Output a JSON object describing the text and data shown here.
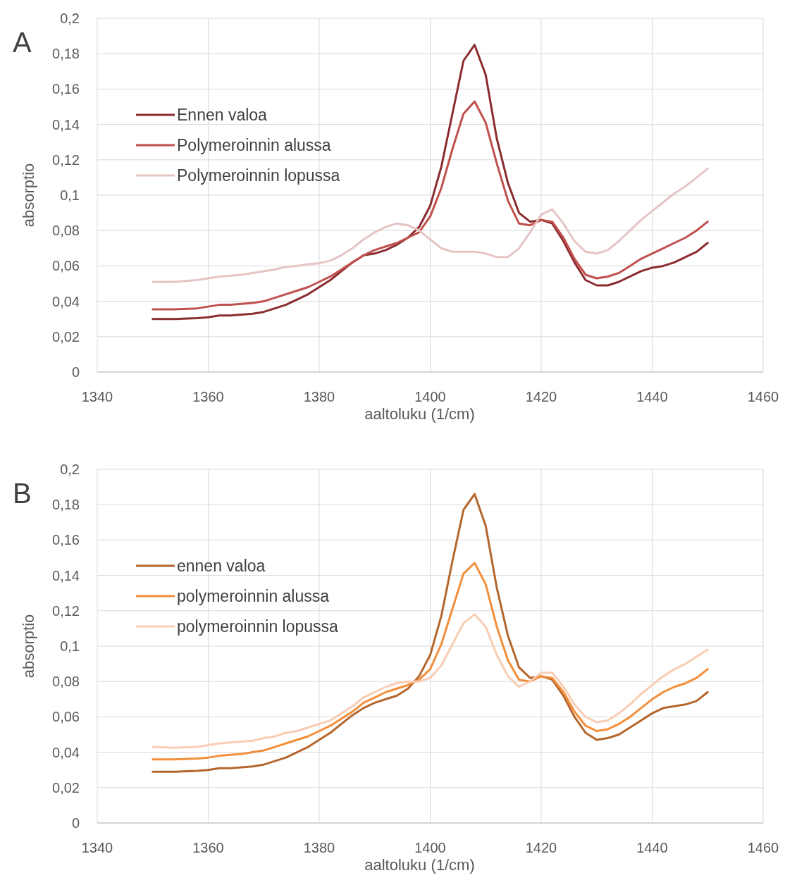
{
  "chart_data": [
    {
      "type": "line",
      "annotations": [
        "A"
      ],
      "xlabel": "aaltoluku (1/cm)",
      "ylabel": "absorptio",
      "grid": true,
      "legend": "top left",
      "xlim": [
        1340,
        1460
      ],
      "xticks": [
        1340,
        1360,
        1380,
        1400,
        1420,
        1440,
        1460
      ],
      "ylim": [
        0,
        0.2
      ],
      "yticks": [
        0,
        {
          "value": 0.02,
          "label": "0,02"
        },
        {
          "value": 0.04,
          "label": "0,04"
        },
        {
          "value": 0.06,
          "label": "0,06"
        },
        {
          "value": 0.08,
          "label": "0,08"
        },
        {
          "value": 0.1,
          "label": "0,1"
        },
        {
          "value": 0.12,
          "label": "0,12"
        },
        {
          "value": 0.14,
          "label": "0,14"
        },
        {
          "value": 0.16,
          "label": "0,16"
        },
        {
          "value": 0.18,
          "label": "0,18"
        },
        {
          "value": 0.2,
          "label": "0,2"
        }
      ],
      "x": [
        1350,
        1354,
        1358,
        1360,
        1362,
        1364,
        1366,
        1368,
        1370,
        1372,
        1374,
        1376,
        1378,
        1380,
        1382,
        1384,
        1386,
        1388,
        1390,
        1392,
        1394,
        1396,
        1398,
        1400,
        1402,
        1404,
        1406,
        1408,
        1410,
        1412,
        1414,
        1416,
        1418,
        1420,
        1422,
        1424,
        1426,
        1428,
        1430,
        1432,
        1434,
        1436,
        1438,
        1440,
        1442,
        1444,
        1446,
        1448,
        1450
      ],
      "series": [
        {
          "name": "Ennen valoa",
          "color": "#8b2c30",
          "values": [
            0.03,
            0.03,
            0.0305,
            0.031,
            0.032,
            0.032,
            0.0325,
            0.033,
            0.034,
            0.036,
            0.038,
            0.041,
            0.044,
            0.048,
            0.052,
            0.057,
            0.062,
            0.066,
            0.067,
            0.069,
            0.072,
            0.076,
            0.082,
            0.094,
            0.116,
            0.146,
            0.176,
            0.185,
            0.168,
            0.132,
            0.107,
            0.09,
            0.085,
            0.086,
            0.084,
            0.074,
            0.062,
            0.052,
            0.049,
            0.049,
            0.051,
            0.054,
            0.057,
            0.059,
            0.06,
            0.062,
            0.065,
            0.068,
            0.073
          ]
        },
        {
          "name": "Polymeroinnin alussa",
          "color": "#c0504d",
          "values": [
            0.0355,
            0.0355,
            0.036,
            0.037,
            0.038,
            0.038,
            0.0385,
            0.039,
            0.04,
            0.042,
            0.044,
            0.046,
            0.048,
            0.051,
            0.054,
            0.058,
            0.062,
            0.066,
            0.069,
            0.071,
            0.073,
            0.076,
            0.079,
            0.088,
            0.104,
            0.126,
            0.146,
            0.153,
            0.141,
            0.118,
            0.097,
            0.084,
            0.083,
            0.086,
            0.085,
            0.076,
            0.064,
            0.055,
            0.053,
            0.054,
            0.056,
            0.06,
            0.064,
            0.067,
            0.07,
            0.073,
            0.076,
            0.08,
            0.085
          ]
        },
        {
          "name": "Polymeroinnin lopussa",
          "color": "#e6c4c4",
          "values": [
            0.051,
            0.051,
            0.052,
            0.053,
            0.054,
            0.0545,
            0.055,
            0.056,
            0.057,
            0.058,
            0.0595,
            0.06,
            0.061,
            0.0615,
            0.063,
            0.066,
            0.07,
            0.075,
            0.079,
            0.082,
            0.084,
            0.083,
            0.08,
            0.075,
            0.07,
            0.068,
            0.068,
            0.068,
            0.067,
            0.065,
            0.065,
            0.07,
            0.079,
            0.089,
            0.092,
            0.084,
            0.074,
            0.068,
            0.067,
            0.069,
            0.074,
            0.08,
            0.086,
            0.091,
            0.096,
            0.101,
            0.105,
            0.11,
            0.115
          ]
        }
      ]
    },
    {
      "type": "line",
      "annotations": [
        "B"
      ],
      "xlabel": "aaltoluku (1/cm)",
      "ylabel": "absorptio",
      "grid": true,
      "legend": "top left",
      "xlim": [
        1340,
        1460
      ],
      "xticks": [
        1340,
        1360,
        1380,
        1400,
        1420,
        1440,
        1460
      ],
      "ylim": [
        0,
        0.2
      ],
      "yticks": [
        0,
        {
          "value": 0.02,
          "label": "0,02"
        },
        {
          "value": 0.04,
          "label": "0,04"
        },
        {
          "value": 0.06,
          "label": "0,06"
        },
        {
          "value": 0.08,
          "label": "0,08"
        },
        {
          "value": 0.1,
          "label": "0,1"
        },
        {
          "value": 0.12,
          "label": "0,12"
        },
        {
          "value": 0.14,
          "label": "0,14"
        },
        {
          "value": 0.16,
          "label": "0,16"
        },
        {
          "value": 0.18,
          "label": "0,18"
        },
        {
          "value": 0.2,
          "label": "0,2"
        }
      ],
      "x": [
        1350,
        1354,
        1358,
        1360,
        1362,
        1364,
        1366,
        1368,
        1370,
        1372,
        1374,
        1376,
        1378,
        1380,
        1382,
        1384,
        1386,
        1388,
        1390,
        1392,
        1394,
        1396,
        1398,
        1400,
        1402,
        1404,
        1406,
        1408,
        1410,
        1412,
        1414,
        1416,
        1418,
        1420,
        1422,
        1424,
        1426,
        1428,
        1430,
        1432,
        1434,
        1436,
        1438,
        1440,
        1442,
        1444,
        1446,
        1448,
        1450
      ],
      "series": [
        {
          "name": "ennen valoa",
          "color": "#b4662c",
          "values": [
            0.029,
            0.029,
            0.0295,
            0.03,
            0.031,
            0.031,
            0.0315,
            0.032,
            0.033,
            0.035,
            0.037,
            0.04,
            0.043,
            0.047,
            0.051,
            0.056,
            0.061,
            0.065,
            0.068,
            0.07,
            0.072,
            0.076,
            0.083,
            0.095,
            0.117,
            0.148,
            0.177,
            0.186,
            0.168,
            0.133,
            0.106,
            0.088,
            0.082,
            0.083,
            0.081,
            0.072,
            0.06,
            0.051,
            0.047,
            0.048,
            0.05,
            0.054,
            0.058,
            0.062,
            0.065,
            0.066,
            0.067,
            0.069,
            0.074
          ]
        },
        {
          "name": "polymeroinnin alussa",
          "color": "#f28e3a",
          "values": [
            0.036,
            0.036,
            0.0365,
            0.037,
            0.038,
            0.0385,
            0.039,
            0.04,
            0.041,
            0.043,
            0.045,
            0.047,
            0.049,
            0.052,
            0.055,
            0.059,
            0.063,
            0.068,
            0.071,
            0.074,
            0.076,
            0.078,
            0.081,
            0.087,
            0.101,
            0.121,
            0.141,
            0.147,
            0.135,
            0.111,
            0.092,
            0.081,
            0.08,
            0.083,
            0.082,
            0.074,
            0.063,
            0.055,
            0.052,
            0.053,
            0.056,
            0.06,
            0.065,
            0.07,
            0.074,
            0.077,
            0.079,
            0.082,
            0.087
          ]
        },
        {
          "name": "polymeroinnin lopussa",
          "color": "#f9cdb4",
          "values": [
            0.043,
            0.0425,
            0.043,
            0.044,
            0.045,
            0.0455,
            0.046,
            0.0465,
            0.048,
            0.049,
            0.051,
            0.052,
            0.054,
            0.056,
            0.058,
            0.062,
            0.066,
            0.071,
            0.074,
            0.077,
            0.079,
            0.08,
            0.08,
            0.082,
            0.089,
            0.101,
            0.113,
            0.118,
            0.111,
            0.095,
            0.083,
            0.077,
            0.08,
            0.085,
            0.085,
            0.077,
            0.067,
            0.06,
            0.057,
            0.058,
            0.062,
            0.067,
            0.073,
            0.078,
            0.083,
            0.087,
            0.09,
            0.094,
            0.098
          ]
        }
      ]
    }
  ]
}
